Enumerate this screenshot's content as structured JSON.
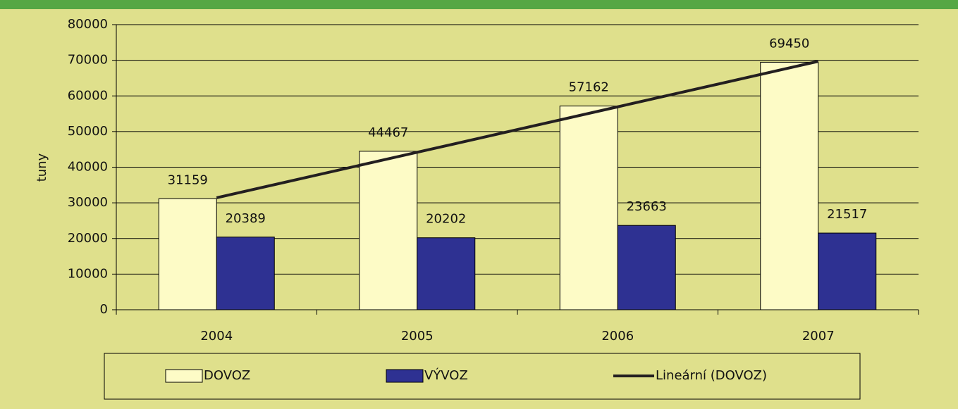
{
  "chart_data": {
    "type": "bar",
    "y_label": "tuny",
    "categories": [
      "2004",
      "2005",
      "2006",
      "2007"
    ],
    "series": [
      {
        "name": "DOVOZ",
        "color": "#fdfbc6",
        "values": [
          31159,
          44467,
          57162,
          69450
        ]
      },
      {
        "name": "VÝVOZ",
        "color": "#2e3192",
        "values": [
          20389,
          20202,
          23663,
          21517
        ]
      },
      {
        "name": "Lineární (DOVOZ)",
        "color": "#231f20",
        "type": "line",
        "values": [
          31424,
          44181,
          56938,
          69695
        ]
      }
    ],
    "ylim": [
      0,
      80000
    ],
    "yticks": [
      0,
      10000,
      20000,
      30000,
      40000,
      50000,
      60000,
      70000,
      80000
    ],
    "grid": true,
    "legend": "bottom"
  }
}
